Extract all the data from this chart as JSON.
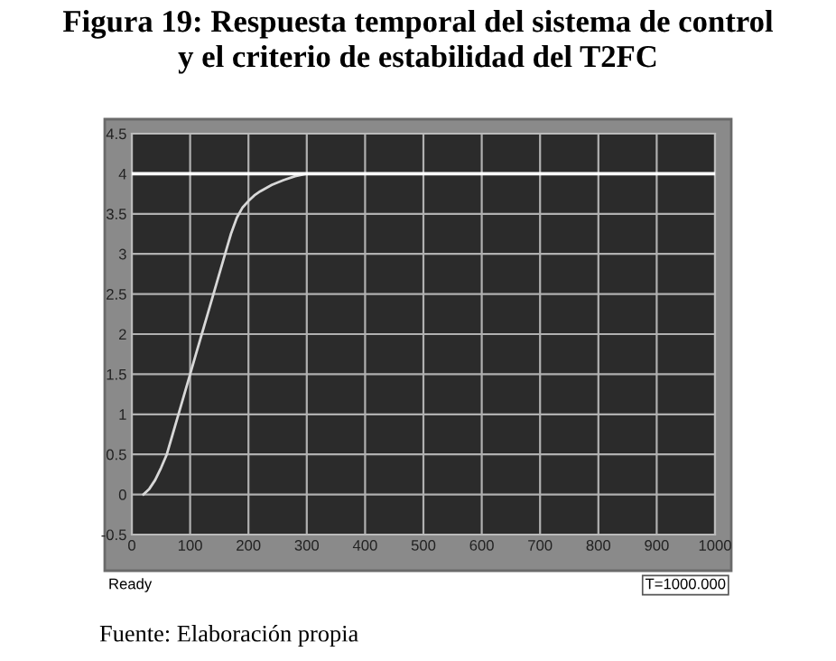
{
  "chart_data": {
    "type": "line",
    "title": "Figura 19: Respuesta temporal del sistema de control\ny el criterio de estabilidad del T2FC",
    "x": [
      20,
      30,
      40,
      50,
      60,
      70,
      80,
      90,
      100,
      110,
      120,
      130,
      140,
      150,
      160,
      170,
      180,
      190,
      200,
      210,
      220,
      240,
      260,
      280,
      300,
      350
    ],
    "series": [
      {
        "color": "#d8d8d8",
        "values": [
          0,
          0.07,
          0.18,
          0.33,
          0.5,
          0.75,
          1.0,
          1.25,
          1.5,
          1.75,
          2.0,
          2.25,
          2.5,
          2.75,
          3.0,
          3.25,
          3.45,
          3.58,
          3.66,
          3.73,
          3.78,
          3.86,
          3.92,
          3.97,
          4.0,
          4.0
        ]
      }
    ],
    "ref_lines": [
      {
        "axis": "y",
        "value": 4,
        "color": "#ffffff"
      }
    ],
    "xlim": [
      0,
      1000
    ],
    "xticks": [
      0,
      100,
      200,
      300,
      400,
      500,
      600,
      700,
      800,
      900,
      1000
    ],
    "ylim": [
      -0.5,
      4.5
    ],
    "yticks": [
      {
        "value": -0.5,
        "label": "-0.5"
      },
      0,
      0.5,
      1,
      1.5,
      2,
      2.5,
      3,
      3.5,
      4,
      4.5
    ],
    "grid": true,
    "legend": false,
    "annotations": [
      "Ready",
      "T=1000.000",
      "Fuente: Elaboración propia"
    ]
  }
}
